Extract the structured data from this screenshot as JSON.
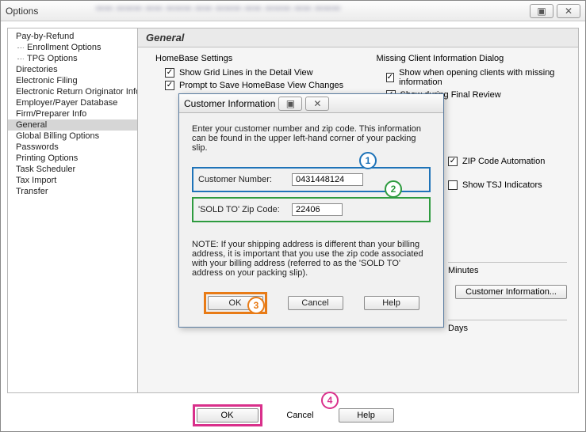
{
  "window": {
    "title": "Options",
    "restore_icon": "▣",
    "close_icon": "✕"
  },
  "sidebar": {
    "items": [
      {
        "label": "Pay-by-Refund",
        "indent": false,
        "selected": false
      },
      {
        "label": "Enrollment Options",
        "indent": true,
        "selected": false
      },
      {
        "label": "TPG Options",
        "indent": true,
        "selected": false
      },
      {
        "label": "Directories",
        "indent": false,
        "selected": false
      },
      {
        "label": "Electronic Filing",
        "indent": false,
        "selected": false
      },
      {
        "label": "Electronic Return Originator Info",
        "indent": false,
        "selected": false
      },
      {
        "label": "Employer/Payer Database",
        "indent": false,
        "selected": false
      },
      {
        "label": "Firm/Preparer Info",
        "indent": false,
        "selected": false
      },
      {
        "label": "General",
        "indent": false,
        "selected": true
      },
      {
        "label": "Global Billing Options",
        "indent": false,
        "selected": false
      },
      {
        "label": "Passwords",
        "indent": false,
        "selected": false
      },
      {
        "label": "Printing Options",
        "indent": false,
        "selected": false
      },
      {
        "label": "Task Scheduler",
        "indent": false,
        "selected": false
      },
      {
        "label": "Tax Import",
        "indent": false,
        "selected": false
      },
      {
        "label": "Transfer",
        "indent": false,
        "selected": false
      }
    ]
  },
  "general": {
    "header": "General",
    "homebase_label": "HomeBase Settings",
    "missing_label": "Missing Client Information Dialog",
    "show_grid": {
      "label": "Show Grid Lines in the Detail View",
      "checked": true
    },
    "prompt_save": {
      "label": "Prompt to Save HomeBase View Changes",
      "checked": true
    },
    "show_when_opening": {
      "label": "Show when opening clients with missing information",
      "checked": true
    },
    "show_final": {
      "label": "Show during Final Review",
      "checked": true
    },
    "zip_auto": {
      "label": "ZIP Code Automation",
      "checked": true
    },
    "show_tsj": {
      "label": "Show TSJ Indicators",
      "checked": false
    },
    "minutes": "Minutes",
    "days": "Days",
    "customer_info_btn": "Customer Information..."
  },
  "bottom": {
    "ok": "OK",
    "cancel": "Cancel",
    "help": "Help"
  },
  "dialog": {
    "title": "Customer Information",
    "intro": "Enter your customer number and zip code. This information can be found in the upper left-hand corner of your packing slip.",
    "cust_label": "Customer Number:",
    "cust_value": "0431448124",
    "zip_label": "'SOLD TO' Zip Code:",
    "zip_value": "22406",
    "note": "NOTE: If your shipping address is different than your billing address, it is important that you use the zip code associated with your billing address (referred to as the 'SOLD TO' address on your packing slip).",
    "ok": "OK",
    "cancel": "Cancel",
    "help": "Help"
  },
  "callouts": {
    "c1": "1",
    "c2": "2",
    "c3": "3",
    "c4": "4"
  },
  "colors": {
    "blue": "#1e73b8",
    "green": "#2e9b3f",
    "orange": "#e87b16",
    "pink": "#d9308b"
  }
}
